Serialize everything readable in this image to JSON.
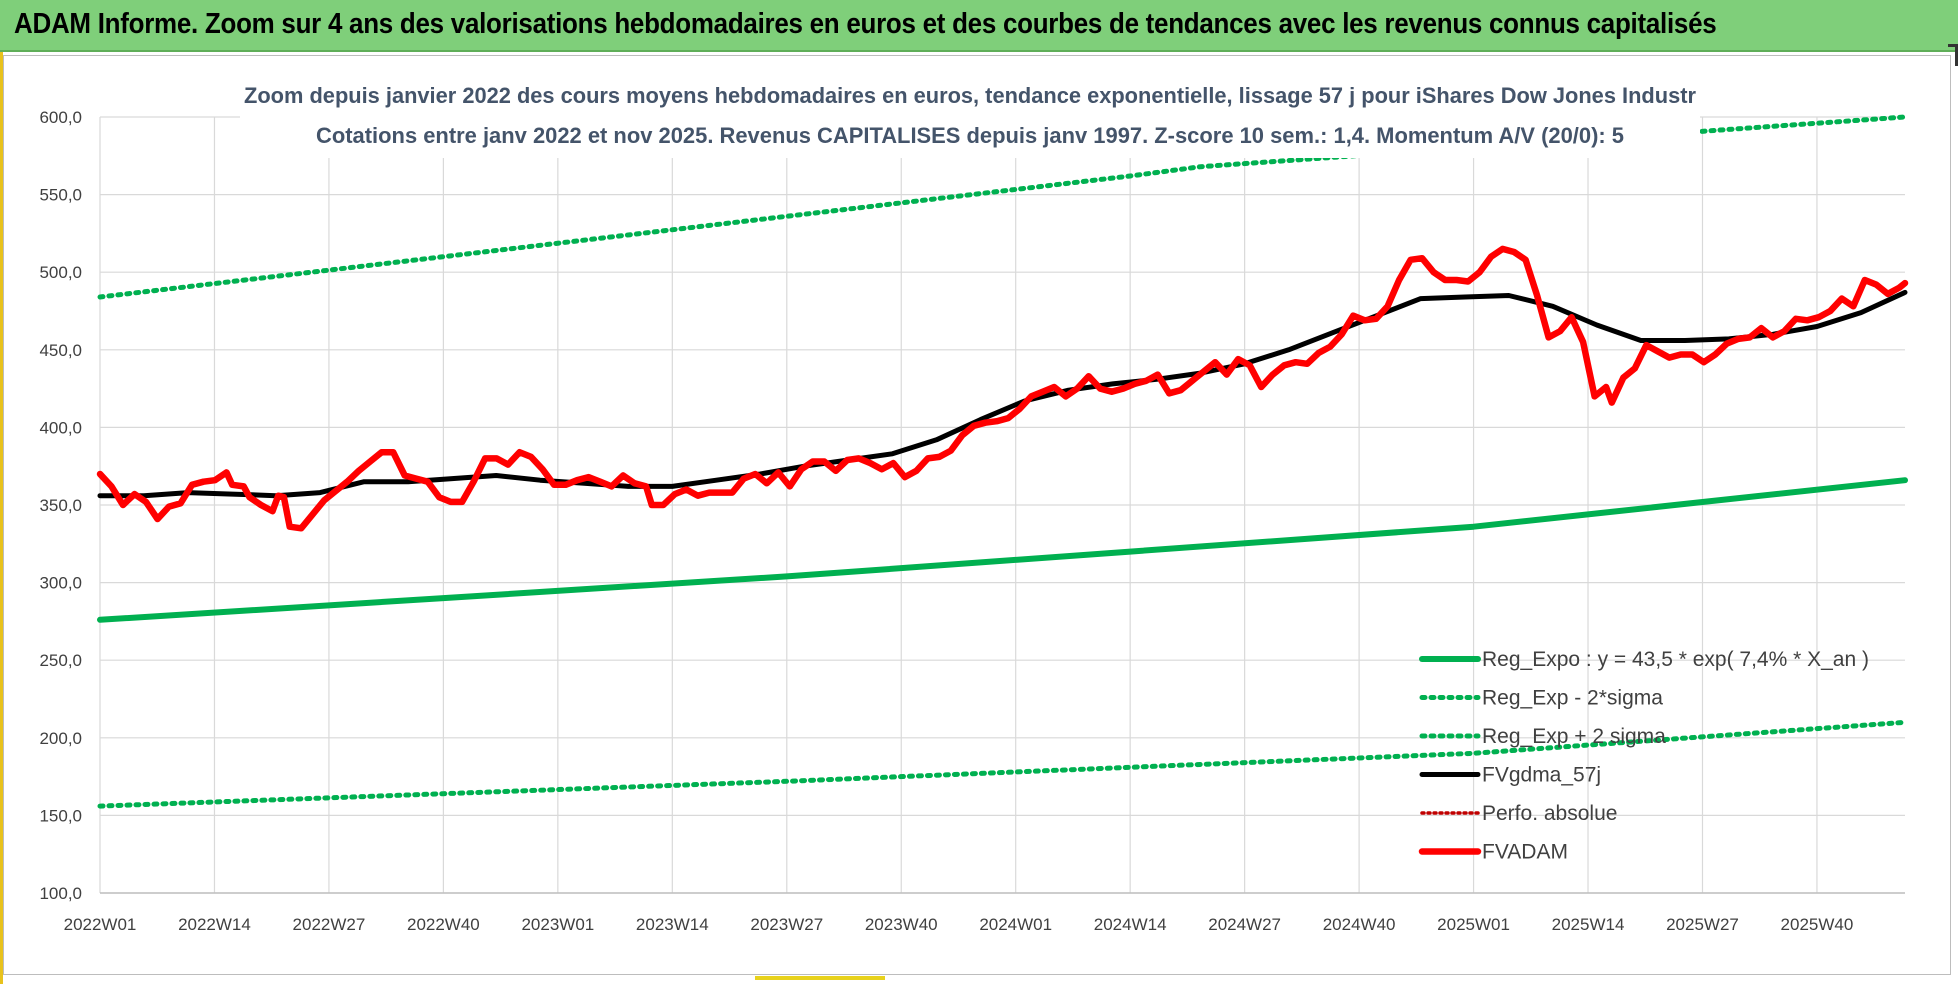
{
  "page": {
    "banner_title": "ADAM Informe. Zoom sur 4 ans des valorisations hebdomadaires en euros et des courbes de tendances avec les revenus connus capitalisés"
  },
  "colors": {
    "banner_bg": "#7fcf7a",
    "reg_expo": "#00b050",
    "fvgdma": "#000000",
    "fvadam": "#ff0000",
    "perfo": "#c00000",
    "axis_text": "#404040",
    "title_text": "#44546a"
  },
  "chart_data": {
    "type": "line",
    "title_line1": "Zoom depuis janvier 2022 des cours moyens hebdomadaires en euros, tendance exponentielle, lissage 57 j pour iShares Dow Jones Industr",
    "title_line2": "Cotations entre janv 2022 et nov 2025. Revenus CAPITALISES depuis janv 1997. Z-score 10 sem.: 1,4. Momentum A/V (20/0): 5",
    "xlabel": "",
    "ylabel": "",
    "ylim": [
      100,
      600
    ],
    "yticks": [
      "100,0",
      "150,0",
      "200,0",
      "250,0",
      "300,0",
      "350,0",
      "400,0",
      "450,0",
      "500,0",
      "550,0",
      "600,0"
    ],
    "xticks": [
      "2022W01",
      "2022W14",
      "2022W27",
      "2022W40",
      "2023W01",
      "2023W14",
      "2023W27",
      "2023W40",
      "2024W01",
      "2024W14",
      "2024W27",
      "2024W40",
      "2025W01",
      "2025W14",
      "2025W27",
      "2025W40"
    ],
    "x_range_weeks": [
      0,
      205
    ],
    "grid": "vertical and horizontal",
    "legend_placement": "bottom-right",
    "series": [
      {
        "name": "Reg_Expo : y = 43,5 * exp( 7,4% *  X_an )",
        "style": "solid",
        "color": "#00b050",
        "points": [
          [
            0,
            276
          ],
          [
            39,
            290
          ],
          [
            78,
            304
          ],
          [
            117,
            320
          ],
          [
            156,
            336
          ],
          [
            205,
            366
          ]
        ]
      },
      {
        "name": "Reg_Exp - 2*sigma",
        "style": "dotted",
        "color": "#00b050",
        "points": [
          [
            0,
            156
          ],
          [
            39,
            164
          ],
          [
            78,
            172
          ],
          [
            117,
            181
          ],
          [
            156,
            190
          ],
          [
            205,
            210
          ]
        ]
      },
      {
        "name": "Reg_Exp + 2 sigma",
        "style": "dotted",
        "color": "#00b050",
        "points": [
          [
            0,
            484
          ],
          [
            39,
            510
          ],
          [
            78,
            536
          ],
          [
            117,
            562
          ],
          [
            125,
            568
          ],
          [
            205,
            600
          ]
        ]
      },
      {
        "name": "FVgdma_57j",
        "style": "solid",
        "color": "#000000",
        "points": [
          [
            0,
            356
          ],
          [
            5,
            356
          ],
          [
            10,
            358
          ],
          [
            15,
            357
          ],
          [
            20,
            356
          ],
          [
            25,
            358
          ],
          [
            30,
            365
          ],
          [
            35,
            365
          ],
          [
            40,
            367
          ],
          [
            45,
            369
          ],
          [
            50,
            366
          ],
          [
            55,
            364
          ],
          [
            60,
            362
          ],
          [
            65,
            362
          ],
          [
            70,
            366
          ],
          [
            75,
            370
          ],
          [
            80,
            375
          ],
          [
            85,
            379
          ],
          [
            90,
            383
          ],
          [
            95,
            392
          ],
          [
            100,
            405
          ],
          [
            105,
            417
          ],
          [
            110,
            424
          ],
          [
            115,
            428
          ],
          [
            120,
            431
          ],
          [
            125,
            435
          ],
          [
            130,
            441
          ],
          [
            135,
            450
          ],
          [
            140,
            461
          ],
          [
            145,
            472
          ],
          [
            150,
            483
          ],
          [
            155,
            484
          ],
          [
            160,
            485
          ],
          [
            165,
            478
          ],
          [
            170,
            466
          ],
          [
            175,
            456
          ],
          [
            180,
            456
          ],
          [
            185,
            457
          ],
          [
            190,
            460
          ],
          [
            195,
            465
          ],
          [
            200,
            474
          ],
          [
            205,
            487
          ]
        ]
      },
      {
        "name": "Perfo. absolue",
        "style": "dotted",
        "color": "#c00000",
        "points": []
      },
      {
        "name": "FVADAM",
        "style": "solid",
        "color": "#ff0000",
        "points": [
          [
            0,
            370
          ],
          [
            2,
            362
          ],
          [
            4,
            350
          ],
          [
            6,
            357
          ],
          [
            8,
            352
          ],
          [
            10,
            341
          ],
          [
            12,
            349
          ],
          [
            14,
            351
          ],
          [
            16,
            363
          ],
          [
            18,
            365
          ],
          [
            20,
            366
          ],
          [
            22,
            371
          ],
          [
            23,
            363
          ],
          [
            25,
            362
          ],
          [
            26,
            355
          ],
          [
            28,
            350
          ],
          [
            30,
            346
          ],
          [
            31,
            356
          ],
          [
            32,
            355
          ],
          [
            33,
            336
          ],
          [
            35,
            335
          ],
          [
            37,
            344
          ],
          [
            39,
            353
          ],
          [
            41,
            359
          ],
          [
            43,
            365
          ],
          [
            45,
            372
          ],
          [
            47,
            378
          ],
          [
            49,
            384
          ],
          [
            51,
            384
          ],
          [
            53,
            369
          ],
          [
            55,
            367
          ],
          [
            57,
            365
          ],
          [
            59,
            355
          ],
          [
            61,
            352
          ],
          [
            63,
            352
          ],
          [
            65,
            365
          ],
          [
            67,
            380
          ],
          [
            69,
            380
          ],
          [
            71,
            376
          ],
          [
            73,
            384
          ],
          [
            75,
            381
          ],
          [
            77,
            373
          ],
          [
            79,
            363
          ],
          [
            81,
            363
          ],
          [
            83,
            366
          ],
          [
            85,
            368
          ],
          [
            87,
            365
          ],
          [
            89,
            362
          ],
          [
            91,
            369
          ],
          [
            93,
            364
          ],
          [
            95,
            362
          ],
          [
            96,
            350
          ],
          [
            98,
            350
          ],
          [
            100,
            357
          ],
          [
            102,
            360
          ],
          [
            104,
            356
          ],
          [
            106,
            358
          ],
          [
            108,
            358
          ],
          [
            110,
            358
          ],
          [
            112,
            367
          ],
          [
            114,
            370
          ],
          [
            116,
            364
          ],
          [
            118,
            371
          ],
          [
            120,
            362
          ],
          [
            122,
            373
          ],
          [
            124,
            378
          ],
          [
            126,
            378
          ],
          [
            128,
            372
          ],
          [
            130,
            379
          ],
          [
            132,
            380
          ],
          [
            134,
            377
          ],
          [
            136,
            373
          ],
          [
            138,
            377
          ],
          [
            140,
            368
          ],
          [
            142,
            372
          ],
          [
            144,
            380
          ],
          [
            146,
            381
          ],
          [
            148,
            385
          ],
          [
            150,
            395
          ],
          [
            152,
            401
          ],
          [
            154,
            403
          ],
          [
            156,
            404
          ],
          [
            158,
            406
          ],
          [
            160,
            412
          ],
          [
            162,
            420
          ],
          [
            164,
            423
          ],
          [
            166,
            426
          ],
          [
            168,
            420
          ],
          [
            170,
            425
          ],
          [
            172,
            433
          ],
          [
            174,
            425
          ],
          [
            176,
            423
          ],
          [
            178,
            425
          ],
          [
            180,
            428
          ],
          [
            182,
            430
          ],
          [
            184,
            434
          ],
          [
            186,
            422
          ],
          [
            188,
            424
          ],
          [
            190,
            430
          ],
          [
            192,
            436
          ],
          [
            194,
            442
          ],
          [
            196,
            434
          ],
          [
            198,
            444
          ],
          [
            200,
            440
          ],
          [
            202,
            426
          ],
          [
            204,
            434
          ],
          [
            206,
            440
          ],
          [
            208,
            442
          ],
          [
            210,
            441
          ],
          [
            212,
            448
          ],
          [
            214,
            452
          ],
          [
            216,
            460
          ],
          [
            218,
            472
          ],
          [
            220,
            469
          ],
          [
            222,
            470
          ],
          [
            224,
            478
          ],
          [
            226,
            495
          ],
          [
            228,
            508
          ],
          [
            230,
            509
          ],
          [
            232,
            500
          ],
          [
            234,
            495
          ],
          [
            236,
            495
          ],
          [
            238,
            494
          ],
          [
            240,
            500
          ],
          [
            242,
            510
          ],
          [
            244,
            515
          ],
          [
            246,
            513
          ],
          [
            248,
            508
          ],
          [
            250,
            485
          ],
          [
            252,
            458
          ],
          [
            254,
            462
          ],
          [
            256,
            471
          ],
          [
            258,
            455
          ],
          [
            260,
            420
          ],
          [
            262,
            426
          ],
          [
            263,
            416
          ],
          [
            265,
            432
          ],
          [
            267,
            438
          ],
          [
            269,
            453
          ],
          [
            271,
            449
          ],
          [
            273,
            445
          ],
          [
            275,
            447
          ],
          [
            277,
            447
          ],
          [
            279,
            442
          ],
          [
            281,
            447
          ],
          [
            283,
            454
          ],
          [
            285,
            457
          ],
          [
            287,
            458
          ],
          [
            289,
            464
          ],
          [
            291,
            458
          ],
          [
            293,
            462
          ],
          [
            295,
            470
          ],
          [
            297,
            469
          ],
          [
            299,
            471
          ],
          [
            301,
            475
          ],
          [
            303,
            483
          ],
          [
            305,
            478
          ],
          [
            307,
            495
          ],
          [
            309,
            492
          ],
          [
            311,
            486
          ],
          [
            313,
            490
          ],
          [
            314,
            493
          ]
        ]
      }
    ]
  }
}
